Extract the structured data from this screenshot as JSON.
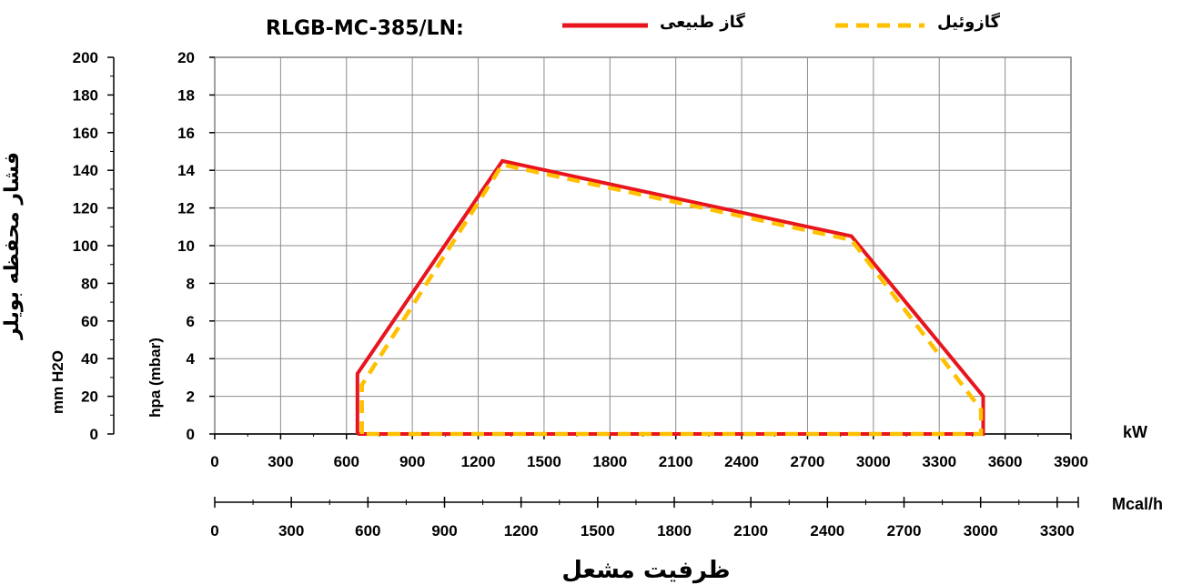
{
  "chart_data": {
    "type": "area",
    "title": "RLGB-MC-385/LN:",
    "xlabel": "ظرفیت مشعل",
    "ylabel": "فشار محفظه بویلر",
    "ylabel_left_unit": "mm H2O",
    "ylabel_right_unit": "hpa (mbar)",
    "x_unit_kw": "kW",
    "x_unit_mcal": "Mcal/h",
    "xlim": [
      0,
      3900
    ],
    "ylim_hpa": [
      0,
      20
    ],
    "ylim_mmh2o": [
      0,
      200
    ],
    "grid": true,
    "legend_position": "top",
    "x_ticks_kw": [
      "0",
      "300",
      "600",
      "900",
      "1200",
      "1500",
      "1800",
      "2100",
      "2400",
      "2700",
      "3000",
      "3300",
      "3600",
      "3900"
    ],
    "x_ticks_mcal": [
      "0",
      "300",
      "600",
      "900",
      "1200",
      "1500",
      "1800",
      "2100",
      "2400",
      "2700",
      "3000",
      "3300"
    ],
    "x_ticks_mcal_values": [
      0,
      300,
      600,
      900,
      1200,
      1500,
      1800,
      2100,
      2400,
      2700,
      3000,
      3300
    ],
    "y_ticks_hpa": [
      "0",
      "2",
      "4",
      "6",
      "8",
      "10",
      "12",
      "14",
      "16",
      "18",
      "20"
    ],
    "y_ticks_mmh2o": [
      "0",
      "20",
      "40",
      "60",
      "80",
      "100",
      "120",
      "140",
      "160",
      "180",
      "200"
    ],
    "series": [
      {
        "name": "گاز طبیعی",
        "color": "#e8141e",
        "style": "solid",
        "x": [
          650,
          650,
          1310,
          2900,
          3500,
          3500,
          650
        ],
        "y": [
          0,
          3.2,
          14.5,
          10.5,
          2,
          0,
          0
        ]
      },
      {
        "name": "گازوئیل",
        "color": "#ffc000",
        "style": "dashed",
        "x": [
          670,
          670,
          1310,
          2900,
          3490,
          3490,
          670
        ],
        "y": [
          0,
          2.6,
          14.3,
          10.3,
          1.3,
          0,
          0
        ]
      }
    ]
  }
}
